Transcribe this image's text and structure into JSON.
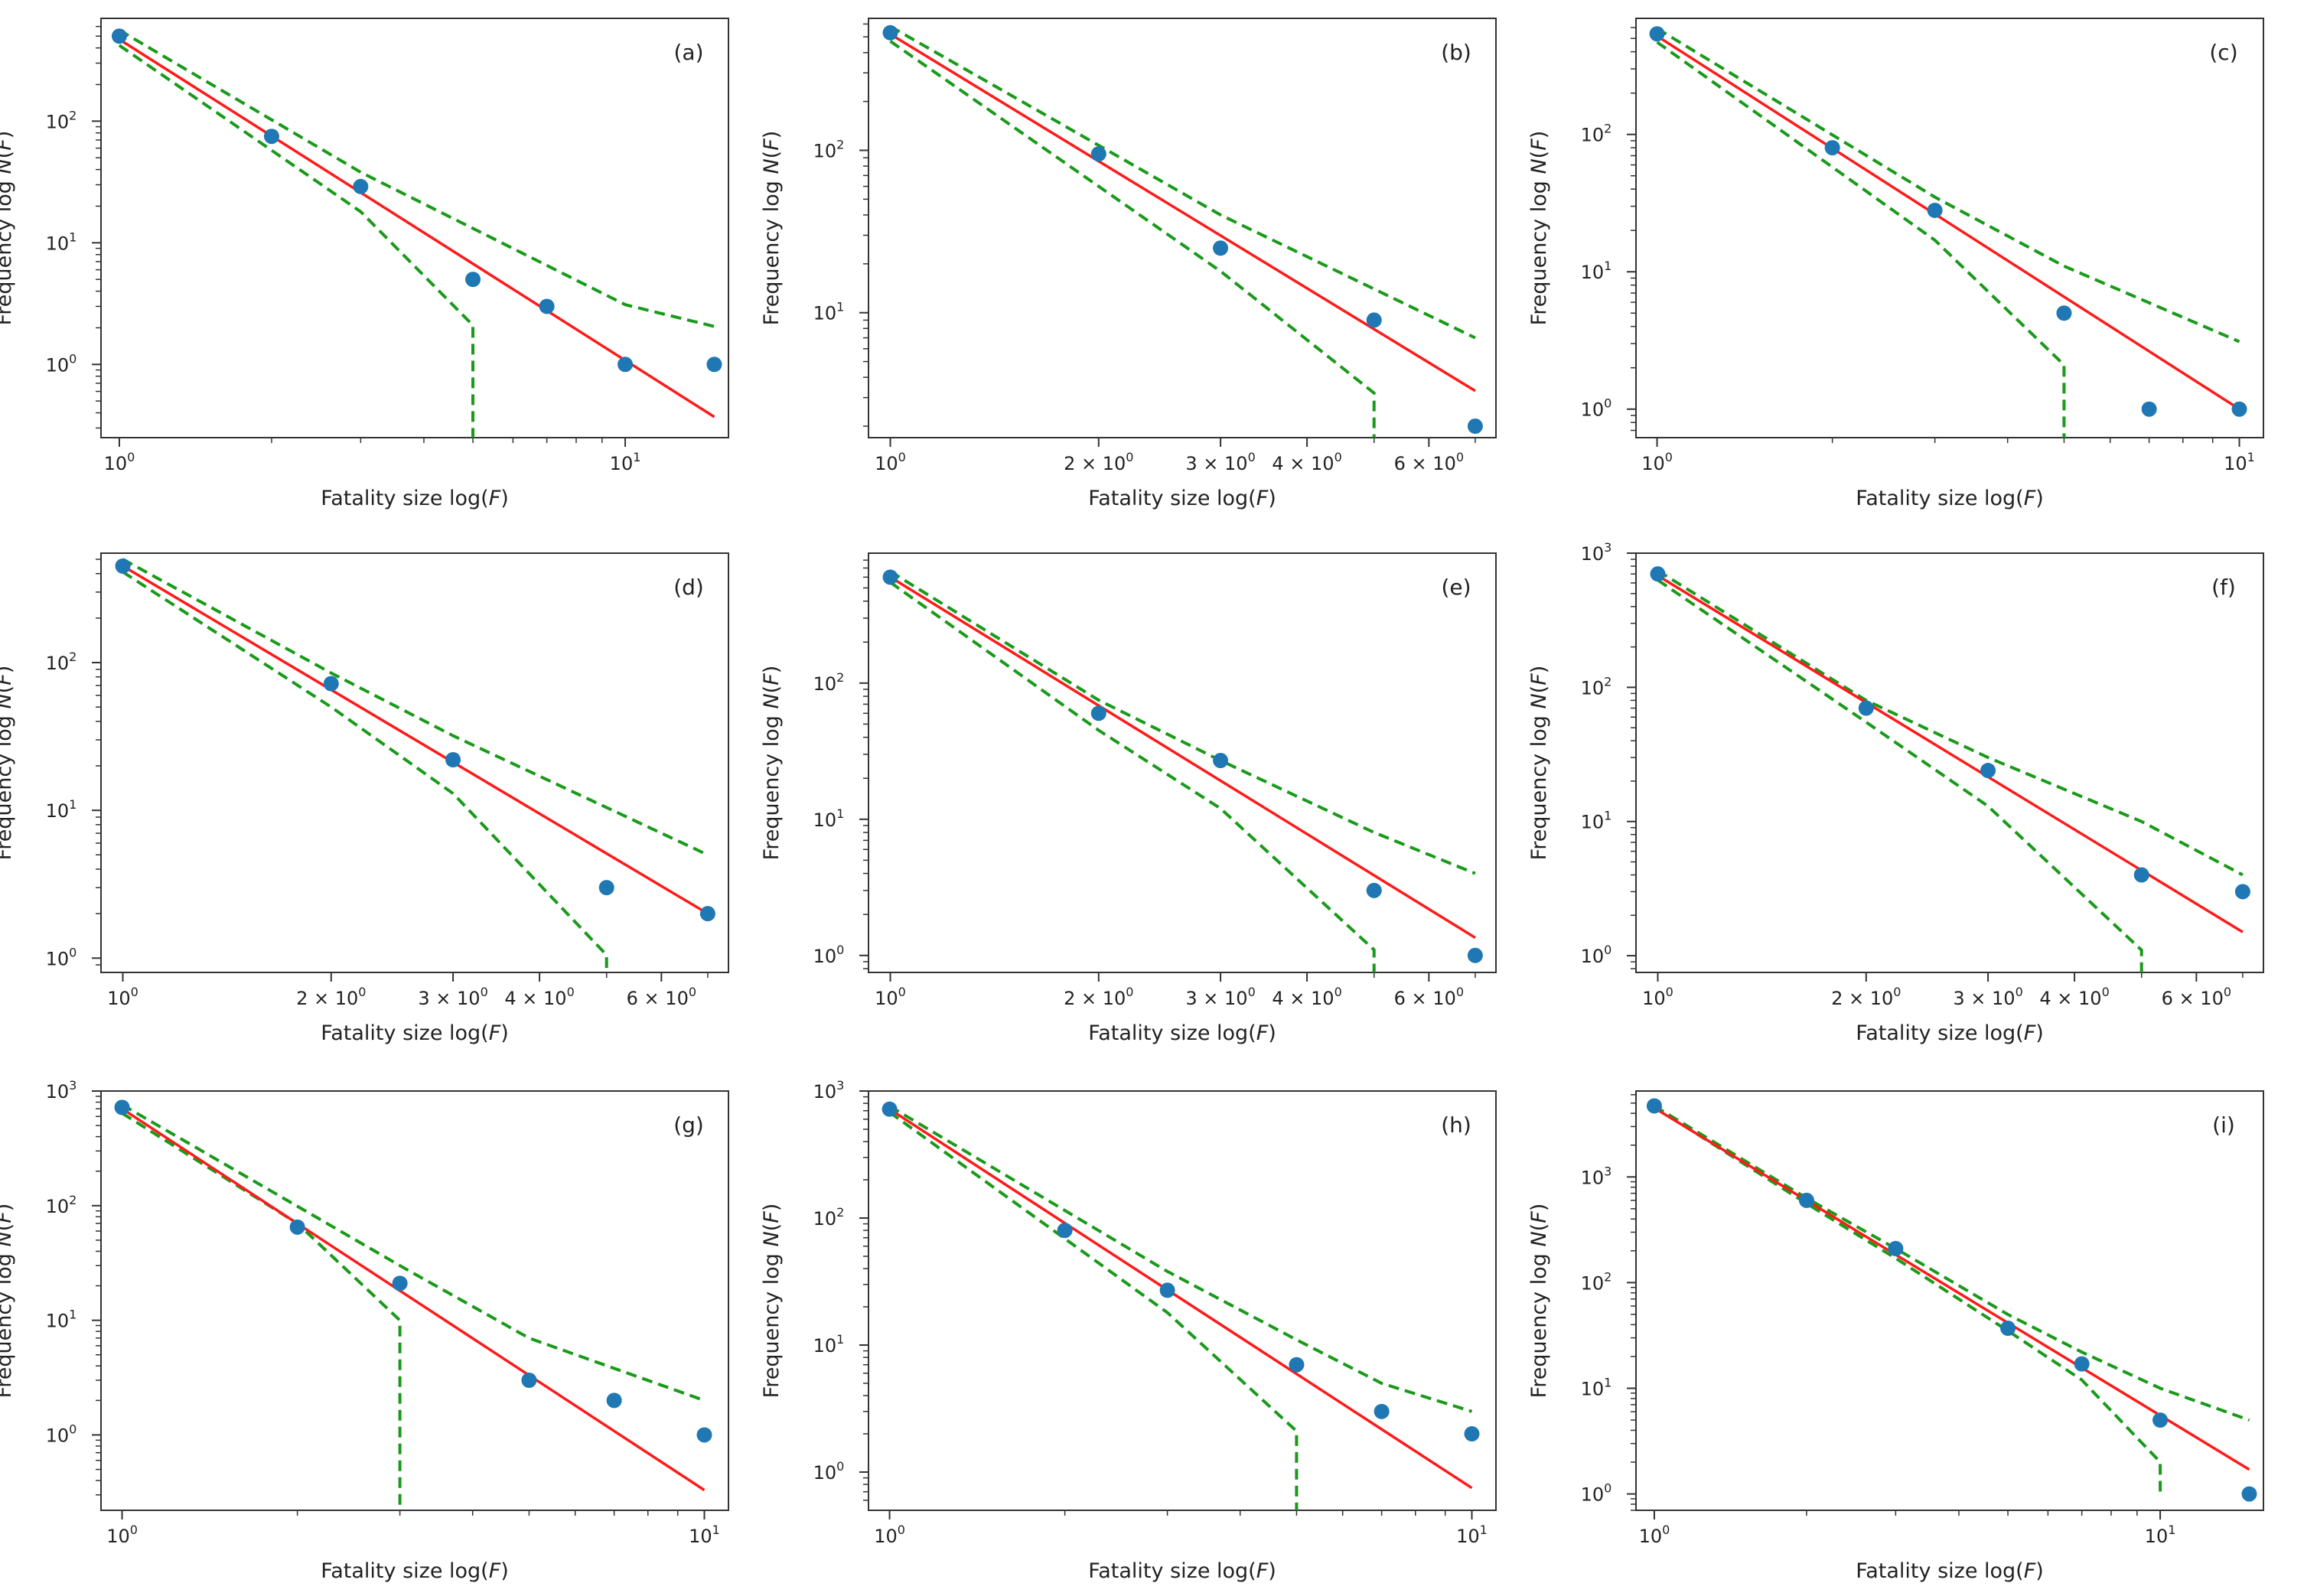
{
  "figure": {
    "panel_count": 9
  },
  "styles": {
    "point_color": "#1f77b4",
    "fit_color": "#ff1a1a",
    "band_color": "#1a9a1a",
    "axis_color": "#333333"
  },
  "chart_data": [
    {
      "type": "scatter",
      "panel_label": "(a)",
      "xlabel": "Fatality size log(",
      "xlabel_var": "F",
      "xlabel_end": ")",
      "ylabel": "Frequency log ",
      "ylabel_var": "N",
      "ylabel_mid": "(",
      "ylabel_var2": "F",
      "ylabel_end": ")",
      "xscale": "log",
      "yscale": "log",
      "xlim": [
        0.92,
        16
      ],
      "ylim": [
        0.25,
        700
      ],
      "xticks": [
        {
          "value": 1,
          "base": "10",
          "exp": "0"
        },
        {
          "value": 10,
          "base": "10",
          "exp": "1"
        }
      ],
      "yticks": [
        {
          "value": 1,
          "base": "10",
          "exp": "0"
        },
        {
          "value": 10,
          "base": "10",
          "exp": "1"
        },
        {
          "value": 100,
          "base": "10",
          "exp": "2"
        }
      ],
      "points": {
        "x": [
          1,
          2,
          3,
          5,
          7,
          10,
          15
        ],
        "y": [
          500,
          75,
          29,
          5,
          3,
          1,
          1
        ]
      },
      "fit": {
        "x": [
          1,
          15
        ],
        "y": [
          470,
          0.37
        ]
      },
      "upper": {
        "x": [
          1,
          3,
          10,
          15
        ],
        "y": [
          560,
          38,
          3.1,
          2.05
        ]
      },
      "lower": {
        "x": [
          1,
          3,
          5,
          5
        ],
        "y": [
          420,
          18,
          2.1,
          0.25
        ]
      }
    },
    {
      "type": "scatter",
      "panel_label": "(b)",
      "xlabel": "Fatality size log(",
      "xlabel_var": "F",
      "xlabel_end": ")",
      "ylabel": "Frequency log ",
      "ylabel_var": "N",
      "ylabel_mid": "(",
      "ylabel_var2": "F",
      "ylabel_end": ")",
      "xscale": "log",
      "yscale": "log",
      "xlim": [
        0.93,
        7.5
      ],
      "ylim": [
        1.7,
        650
      ],
      "xticks": [
        {
          "value": 1,
          "base": "10",
          "exp": "0"
        },
        {
          "value": 2,
          "base": "2 × 10",
          "exp": "0"
        },
        {
          "value": 3,
          "base": "3 × 10",
          "exp": "0"
        },
        {
          "value": 4,
          "base": "4 × 10",
          "exp": "0"
        },
        {
          "value": 6,
          "base": "6 × 10",
          "exp": "0"
        }
      ],
      "yticks": [
        {
          "value": 10,
          "base": "10",
          "exp": "1"
        },
        {
          "value": 100,
          "base": "10",
          "exp": "2"
        }
      ],
      "points": {
        "x": [
          1,
          2,
          3,
          5,
          7
        ],
        "y": [
          530,
          95,
          25,
          9,
          2
        ]
      },
      "fit": {
        "x": [
          1,
          7
        ],
        "y": [
          520,
          3.3
        ]
      },
      "upper": {
        "x": [
          1,
          3,
          5,
          7
        ],
        "y": [
          580,
          40,
          14,
          7
        ]
      },
      "lower": {
        "x": [
          1,
          3,
          5,
          5
        ],
        "y": [
          470,
          18,
          3.2,
          1.7
        ]
      }
    },
    {
      "type": "scatter",
      "panel_label": "(c)",
      "xlabel": "Fatality size log(",
      "xlabel_var": "F",
      "xlabel_end": ")",
      "ylabel": "Frequency log ",
      "ylabel_var": "N",
      "ylabel_mid": "(",
      "ylabel_var2": "F",
      "ylabel_end": ")",
      "xscale": "log",
      "yscale": "log",
      "xlim": [
        0.92,
        11
      ],
      "ylim": [
        0.62,
        700
      ],
      "xticks": [
        {
          "value": 1,
          "base": "10",
          "exp": "0"
        },
        {
          "value": 10,
          "base": "10",
          "exp": "1"
        }
      ],
      "yticks": [
        {
          "value": 1,
          "base": "10",
          "exp": "0"
        },
        {
          "value": 10,
          "base": "10",
          "exp": "1"
        },
        {
          "value": 100,
          "base": "10",
          "exp": "2"
        }
      ],
      "points": {
        "x": [
          1,
          2,
          3,
          5,
          7,
          10
        ],
        "y": [
          540,
          80,
          28,
          5,
          1,
          1
        ]
      },
      "fit": {
        "x": [
          1,
          10
        ],
        "y": [
          520,
          1
        ]
      },
      "upper": {
        "x": [
          1,
          3,
          5,
          10
        ],
        "y": [
          590,
          35,
          11,
          3.1
        ]
      },
      "lower": {
        "x": [
          1,
          3,
          5,
          5
        ],
        "y": [
          470,
          17,
          2.1,
          0.62
        ]
      }
    },
    {
      "type": "scatter",
      "panel_label": "(d)",
      "xlabel": "Fatality size log(",
      "xlabel_var": "F",
      "xlabel_end": ")",
      "ylabel": "Frequency log ",
      "ylabel_var": "N",
      "ylabel_mid": "(",
      "ylabel_var2": "F",
      "ylabel_end": ")",
      "xscale": "log",
      "yscale": "log",
      "xlim": [
        0.93,
        7.5
      ],
      "ylim": [
        0.8,
        550
      ],
      "xticks": [
        {
          "value": 1,
          "base": "10",
          "exp": "0"
        },
        {
          "value": 2,
          "base": "2 × 10",
          "exp": "0"
        },
        {
          "value": 3,
          "base": "3 × 10",
          "exp": "0"
        },
        {
          "value": 4,
          "base": "4 × 10",
          "exp": "0"
        },
        {
          "value": 6,
          "base": "6 × 10",
          "exp": "0"
        }
      ],
      "yticks": [
        {
          "value": 1,
          "base": "10",
          "exp": "0"
        },
        {
          "value": 10,
          "base": "10",
          "exp": "1"
        },
        {
          "value": 100,
          "base": "10",
          "exp": "2"
        }
      ],
      "points": {
        "x": [
          1,
          2,
          3,
          5,
          7
        ],
        "y": [
          450,
          72,
          22,
          3,
          2
        ]
      },
      "fit": {
        "x": [
          1,
          7
        ],
        "y": [
          450,
          2
        ]
      },
      "upper": {
        "x": [
          1,
          2,
          3,
          7
        ],
        "y": [
          500,
          85,
          32,
          5
        ]
      },
      "lower": {
        "x": [
          1,
          2,
          3,
          5,
          5
        ],
        "y": [
          410,
          50,
          13,
          1.05,
          0.8
        ]
      }
    },
    {
      "type": "scatter",
      "panel_label": "(e)",
      "xlabel": "Fatality size log(",
      "xlabel_var": "F",
      "xlabel_end": ")",
      "ylabel": "Frequency log ",
      "ylabel_var": "N",
      "ylabel_mid": "(",
      "ylabel_var2": "F",
      "ylabel_end": ")",
      "xscale": "log",
      "yscale": "log",
      "xlim": [
        0.93,
        7.5
      ],
      "ylim": [
        0.75,
        900
      ],
      "xticks": [
        {
          "value": 1,
          "base": "10",
          "exp": "0"
        },
        {
          "value": 2,
          "base": "2 × 10",
          "exp": "0"
        },
        {
          "value": 3,
          "base": "3 × 10",
          "exp": "0"
        },
        {
          "value": 4,
          "base": "4 × 10",
          "exp": "0"
        },
        {
          "value": 6,
          "base": "6 × 10",
          "exp": "0"
        }
      ],
      "yticks": [
        {
          "value": 1,
          "base": "10",
          "exp": "0"
        },
        {
          "value": 10,
          "base": "10",
          "exp": "1"
        },
        {
          "value": 100,
          "base": "10",
          "exp": "2"
        }
      ],
      "points": {
        "x": [
          1,
          2,
          3,
          5,
          7
        ],
        "y": [
          600,
          60,
          27,
          3,
          1
        ]
      },
      "fit": {
        "x": [
          1,
          7
        ],
        "y": [
          600,
          1.35
        ]
      },
      "upper": {
        "x": [
          1,
          2,
          3,
          5,
          7
        ],
        "y": [
          660,
          75,
          27,
          8,
          4
        ]
      },
      "lower": {
        "x": [
          1,
          2,
          3,
          5,
          5
        ],
        "y": [
          550,
          45,
          12,
          1.1,
          0.75
        ]
      }
    },
    {
      "type": "scatter",
      "panel_label": "(f)",
      "xlabel": "Fatality size log(",
      "xlabel_var": "F",
      "xlabel_end": ")",
      "ylabel": "Frequency log ",
      "ylabel_var": "N",
      "ylabel_mid": "(",
      "ylabel_var2": "F",
      "ylabel_end": ")",
      "xscale": "log",
      "yscale": "log",
      "xlim": [
        0.93,
        7.5
      ],
      "ylim": [
        0.75,
        1000
      ],
      "xticks": [
        {
          "value": 1,
          "base": "10",
          "exp": "0"
        },
        {
          "value": 2,
          "base": "2 × 10",
          "exp": "0"
        },
        {
          "value": 3,
          "base": "3 × 10",
          "exp": "0"
        },
        {
          "value": 4,
          "base": "4 × 10",
          "exp": "0"
        },
        {
          "value": 6,
          "base": "6 × 10",
          "exp": "0"
        }
      ],
      "yticks": [
        {
          "value": 1,
          "base": "10",
          "exp": "0"
        },
        {
          "value": 10,
          "base": "10",
          "exp": "1"
        },
        {
          "value": 100,
          "base": "10",
          "exp": "2"
        },
        {
          "value": 1000,
          "base": "10",
          "exp": "3"
        }
      ],
      "points": {
        "x": [
          1,
          2,
          3,
          5,
          7
        ],
        "y": [
          700,
          70,
          24,
          4,
          3
        ]
      },
      "fit": {
        "x": [
          1,
          7
        ],
        "y": [
          680,
          1.5
        ]
      },
      "upper": {
        "x": [
          1,
          2,
          3,
          5,
          7
        ],
        "y": [
          740,
          80,
          30,
          10,
          4
        ]
      },
      "lower": {
        "x": [
          1,
          2,
          3,
          5,
          5
        ],
        "y": [
          630,
          55,
          13,
          1.1,
          0.75
        ]
      }
    },
    {
      "type": "scatter",
      "panel_label": "(g)",
      "xlabel": "Fatality size log(",
      "xlabel_var": "F",
      "xlabel_end": ")",
      "ylabel": "Frequency log ",
      "ylabel_var": "N",
      "ylabel_mid": "(",
      "ylabel_var2": "F",
      "ylabel_end": ")",
      "xscale": "log",
      "yscale": "log",
      "xlim": [
        0.92,
        11
      ],
      "ylim": [
        0.22,
        1000
      ],
      "xticks": [
        {
          "value": 1,
          "base": "10",
          "exp": "0"
        },
        {
          "value": 10,
          "base": "10",
          "exp": "1"
        }
      ],
      "yticks": [
        {
          "value": 1,
          "base": "10",
          "exp": "0"
        },
        {
          "value": 10,
          "base": "10",
          "exp": "1"
        },
        {
          "value": 100,
          "base": "10",
          "exp": "2"
        },
        {
          "value": 1000,
          "base": "10",
          "exp": "3"
        }
      ],
      "points": {
        "x": [
          1,
          2,
          3,
          5,
          7,
          10
        ],
        "y": [
          720,
          65,
          21,
          3,
          2,
          1
        ]
      },
      "fit": {
        "x": [
          1,
          10
        ],
        "y": [
          700,
          0.33
        ]
      },
      "upper": {
        "x": [
          1,
          3,
          5,
          10
        ],
        "y": [
          760,
          30,
          7,
          2
        ]
      },
      "lower": {
        "x": [
          1,
          2,
          3,
          3
        ],
        "y": [
          640,
          70,
          10,
          0.22
        ]
      }
    },
    {
      "type": "scatter",
      "panel_label": "(h)",
      "xlabel": "Fatality size log(",
      "xlabel_var": "F",
      "xlabel_end": ")",
      "ylabel": "Frequency log ",
      "ylabel_var": "N",
      "ylabel_mid": "(",
      "ylabel_var2": "F",
      "ylabel_end": ")",
      "xscale": "log",
      "yscale": "log",
      "xlim": [
        0.92,
        11
      ],
      "ylim": [
        0.5,
        1000
      ],
      "xticks": [
        {
          "value": 1,
          "base": "10",
          "exp": "0"
        },
        {
          "value": 10,
          "base": "10",
          "exp": "1"
        }
      ],
      "yticks": [
        {
          "value": 1,
          "base": "10",
          "exp": "0"
        },
        {
          "value": 10,
          "base": "10",
          "exp": "1"
        },
        {
          "value": 100,
          "base": "10",
          "exp": "2"
        },
        {
          "value": 1000,
          "base": "10",
          "exp": "3"
        }
      ],
      "points": {
        "x": [
          1,
          2,
          3,
          5,
          7,
          10
        ],
        "y": [
          720,
          80,
          27,
          7,
          3,
          2
        ]
      },
      "fit": {
        "x": [
          1,
          10
        ],
        "y": [
          720,
          0.75
        ]
      },
      "upper": {
        "x": [
          1,
          3,
          5,
          7,
          10
        ],
        "y": [
          760,
          38,
          11,
          5,
          3
        ]
      },
      "lower": {
        "x": [
          1,
          3,
          5,
          5
        ],
        "y": [
          680,
          18,
          2.1,
          0.5
        ]
      }
    },
    {
      "type": "scatter",
      "panel_label": "(i)",
      "xlabel": "Fatality size log(",
      "xlabel_var": "F",
      "xlabel_end": ")",
      "ylabel": "Frequency log ",
      "ylabel_var": "N",
      "ylabel_mid": "(",
      "ylabel_var2": "F",
      "ylabel_end": ")",
      "xscale": "log",
      "yscale": "log",
      "xlim": [
        0.92,
        16
      ],
      "ylim": [
        0.7,
        6500
      ],
      "xticks": [
        {
          "value": 1,
          "base": "10",
          "exp": "0"
        },
        {
          "value": 10,
          "base": "10",
          "exp": "1"
        }
      ],
      "yticks": [
        {
          "value": 1,
          "base": "10",
          "exp": "0"
        },
        {
          "value": 10,
          "base": "10",
          "exp": "1"
        },
        {
          "value": 100,
          "base": "10",
          "exp": "2"
        },
        {
          "value": 1000,
          "base": "10",
          "exp": "3"
        }
      ],
      "points": {
        "x": [
          1,
          2,
          3,
          5,
          7,
          10,
          15
        ],
        "y": [
          4700,
          600,
          210,
          37,
          17,
          5,
          1
        ]
      },
      "fit": {
        "x": [
          1,
          15
        ],
        "y": [
          4500,
          1.7
        ]
      },
      "upper": {
        "x": [
          1,
          2,
          3,
          5,
          7,
          10,
          15
        ],
        "y": [
          4700,
          630,
          210,
          50,
          22,
          10,
          5
        ]
      },
      "lower": {
        "x": [
          1,
          2,
          3,
          5,
          7,
          10,
          10
        ],
        "y": [
          4600,
          560,
          170,
          35,
          12,
          2,
          1
        ]
      }
    }
  ]
}
